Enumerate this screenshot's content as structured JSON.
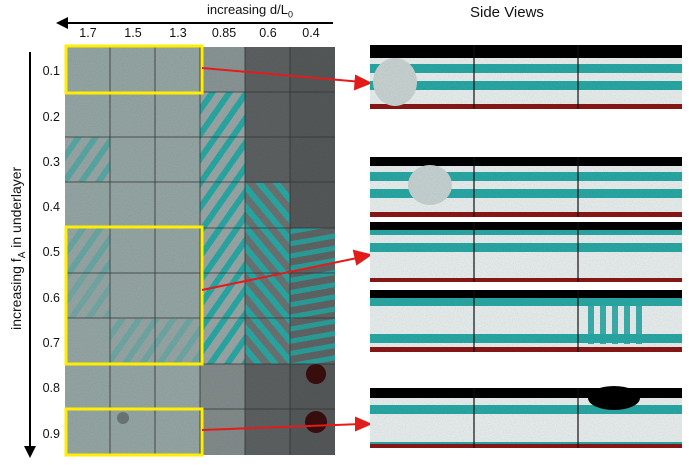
{
  "header": {
    "x_axis_label": "increasing d/L",
    "x_axis_subscript": "0",
    "side_views_title": "Side Views"
  },
  "columns": [
    "1.7",
    "1.5",
    "1.3",
    "0.85",
    "0.6",
    "0.4"
  ],
  "rows": [
    "0.1",
    "0.2",
    "0.3",
    "0.4",
    "0.5",
    "0.6",
    "0.7",
    "0.8",
    "0.9"
  ],
  "y_axis_label": {
    "prefix": "increasing f",
    "subscript": "A",
    "suffix": " in underlayer"
  },
  "colors": {
    "teal": "#2aa9a5",
    "gray_bg": "#8f9d9c",
    "dark_cell": "#5d6162",
    "highlight": "#ffee00",
    "arrow": "#e31b1b",
    "substrate": "#8b1414",
    "top_black": "#000000"
  }
}
